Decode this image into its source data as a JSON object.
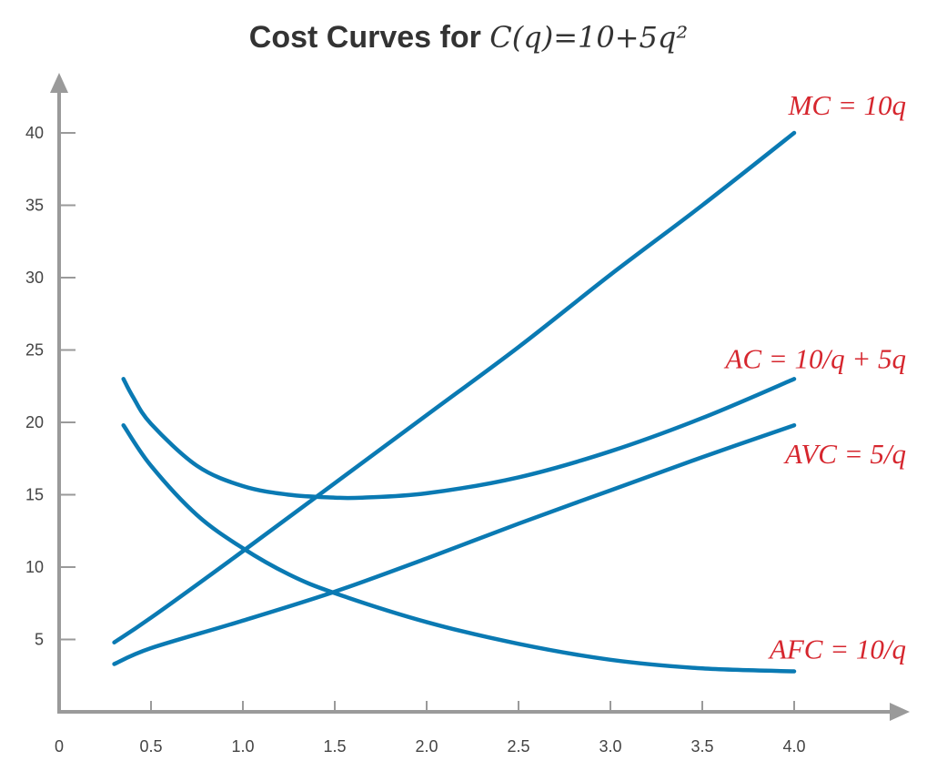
{
  "colors": {
    "curve": "#0a7ab3",
    "label": "#d6262e",
    "axis": "#9a9a9a",
    "text": "#333333"
  },
  "chart_data": {
    "type": "line",
    "title_prefix": "Cost Curves for ",
    "title_expr": "C(q)=10+5q²",
    "xlabel": "",
    "ylabel": "",
    "xlim": [
      0,
      4.5
    ],
    "ylim": [
      0,
      42
    ],
    "x_ticks": [
      "0",
      "0.5",
      "1.0",
      "1.5",
      "2.0",
      "2.5",
      "3.0",
      "3.5",
      "4.0"
    ],
    "y_ticks": [
      "5",
      "10",
      "15",
      "20",
      "25",
      "30",
      "35",
      "40"
    ],
    "grid": false,
    "series": [
      {
        "name": "MC = 10q",
        "x": [
          0.3,
          0.5,
          1.0,
          1.5,
          2.0,
          2.5,
          3.0,
          3.5,
          4.0
        ],
        "y": [
          4.8,
          6.5,
          11.1,
          15.8,
          20.5,
          25.2,
          30.2,
          35.0,
          40.0
        ]
      },
      {
        "name": "AC = 10/q + 5q",
        "x": [
          0.35,
          0.4,
          0.5,
          0.75,
          1.0,
          1.25,
          1.5,
          1.65,
          2.0,
          2.5,
          3.0,
          3.5,
          4.0
        ],
        "y": [
          23.0,
          21.8,
          19.9,
          17.0,
          15.6,
          15.0,
          14.8,
          14.8,
          15.1,
          16.2,
          18.0,
          20.3,
          23.0
        ]
      },
      {
        "name": "AVC = 5/q",
        "x": [
          0.3,
          0.5,
          1.0,
          1.5,
          2.0,
          2.5,
          3.0,
          3.5,
          4.0
        ],
        "y": [
          3.3,
          4.4,
          6.3,
          8.3,
          10.6,
          13.0,
          15.3,
          17.6,
          19.8
        ]
      },
      {
        "name": "AFC = 10/q",
        "x": [
          0.35,
          0.5,
          0.75,
          1.0,
          1.25,
          1.5,
          2.0,
          2.5,
          3.0,
          3.5,
          4.0
        ],
        "y": [
          19.8,
          17.0,
          13.6,
          11.3,
          9.5,
          8.2,
          6.2,
          4.7,
          3.6,
          3.0,
          2.8
        ]
      }
    ]
  }
}
